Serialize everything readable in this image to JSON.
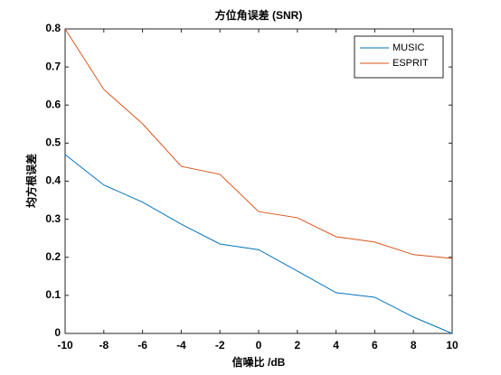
{
  "chart_data": {
    "type": "line",
    "title": "方位角误差 (SNR)",
    "x_label": "信噪比 /dB",
    "y_label": "均方根误差",
    "x": [
      -10,
      -8,
      -6,
      -4,
      -2,
      0,
      2,
      4,
      6,
      8,
      10
    ],
    "series": [
      {
        "name": "MUSIC",
        "color": "#0072bd",
        "values": [
          0.47,
          0.39,
          0.345,
          0.287,
          0.235,
          0.22,
          0.164,
          0.107,
          0.095,
          0.043,
          0
        ]
      },
      {
        "name": "ESPRIT",
        "color": "#d95319",
        "values": [
          0.8,
          0.641,
          0.551,
          0.439,
          0.418,
          0.32,
          0.304,
          0.254,
          0.24,
          0.207,
          0.197
        ]
      }
    ],
    "xlim": [
      -10,
      10
    ],
    "xticks": [
      -10,
      -8,
      -6,
      -4,
      -2,
      0,
      2,
      4,
      6,
      8,
      10
    ],
    "ylim": [
      0,
      0.8
    ],
    "yticks": [
      0,
      0.1,
      0.2,
      0.3,
      0.4,
      0.5,
      0.6,
      0.7,
      0.8
    ],
    "grid": false,
    "legend": "top-right"
  }
}
